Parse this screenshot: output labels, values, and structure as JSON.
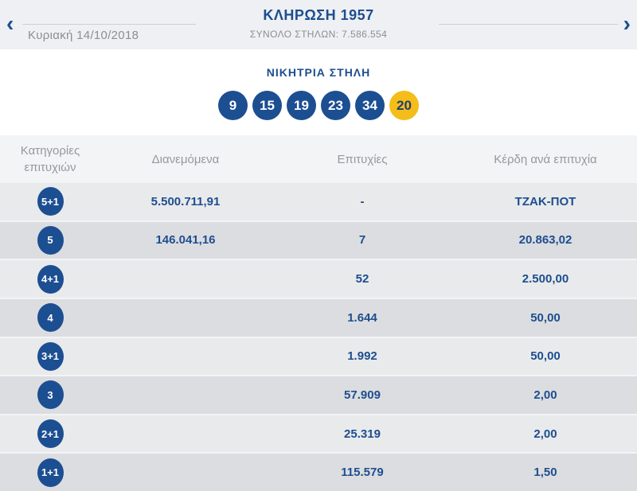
{
  "header": {
    "title": "ΚΛΗΡΩΣΗ 1957",
    "total_columns": "ΣΥΝΟΛΟ ΣΤΗΛΩΝ: 7.586.554",
    "date": "Κυριακή 14/10/2018",
    "prev_icon": "‹",
    "next_icon": "›"
  },
  "winning": {
    "label": "ΝΙΚΗΤΡΙΑ ΣΤΗΛΗ",
    "numbers": [
      "9",
      "15",
      "19",
      "23",
      "34"
    ],
    "joker_number": "20"
  },
  "table": {
    "columns": [
      "Κατηγορίες επιτυχιών",
      "Διανεμόμενα",
      "Επιτυχίες",
      "Κέρδη ανά επιτυχία"
    ],
    "rows": [
      {
        "category": "5+1",
        "distributed": "5.500.711,91",
        "wins": "-",
        "prize": "ΤΖΑΚ-ΠΟΤ"
      },
      {
        "category": "5",
        "distributed": "146.041,16",
        "wins": "7",
        "prize": "20.863,02"
      },
      {
        "category": "4+1",
        "distributed": "",
        "wins": "52",
        "prize": "2.500,00"
      },
      {
        "category": "4",
        "distributed": "",
        "wins": "1.644",
        "prize": "50,00"
      },
      {
        "category": "3+1",
        "distributed": "",
        "wins": "1.992",
        "prize": "50,00"
      },
      {
        "category": "3",
        "distributed": "",
        "wins": "57.909",
        "prize": "2,00"
      },
      {
        "category": "2+1",
        "distributed": "",
        "wins": "25.319",
        "prize": "2,00"
      },
      {
        "category": "1+1",
        "distributed": "",
        "wins": "115.579",
        "prize": "1,50"
      }
    ]
  },
  "colors": {
    "brand_blue": "#1c4e92",
    "joker_yellow": "#f4bd19",
    "topbar_bg": "#eef0f3",
    "table_header_bg": "#f3f4f6",
    "row_light": "#e9eaec",
    "row_dark": "#dcdde0",
    "muted_text": "#8b8e95"
  }
}
